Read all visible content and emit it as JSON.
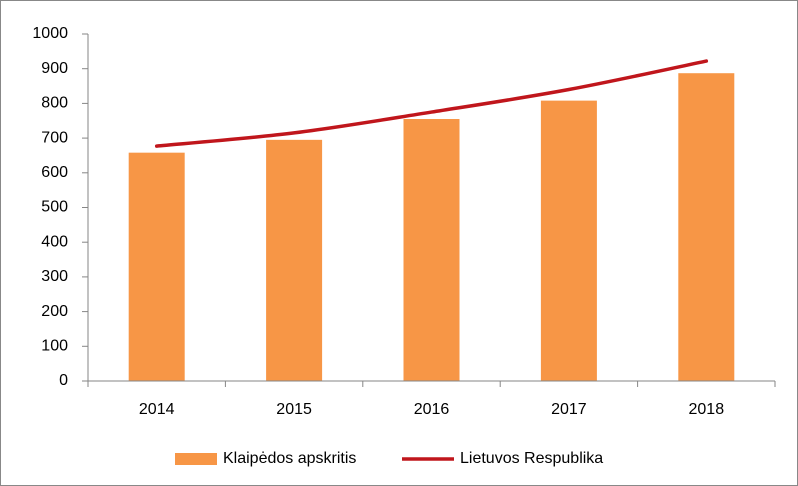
{
  "chart_data": {
    "type": "combo",
    "categories": [
      "2014",
      "2015",
      "2016",
      "2017",
      "2018"
    ],
    "series": [
      {
        "name": "Klaipėdos apskritis",
        "type": "bar",
        "color": "#f79646",
        "values": [
          658,
          695,
          755,
          808,
          887
        ]
      },
      {
        "name": "Lietuvos Respublika",
        "type": "line",
        "color": "#c0161c",
        "values": [
          677,
          715,
          775,
          840,
          922
        ]
      }
    ],
    "ylim": [
      0,
      1000
    ],
    "yticks": [
      0,
      100,
      200,
      300,
      400,
      500,
      600,
      700,
      800,
      900,
      1000
    ],
    "grid": false,
    "legend": "bottom"
  }
}
